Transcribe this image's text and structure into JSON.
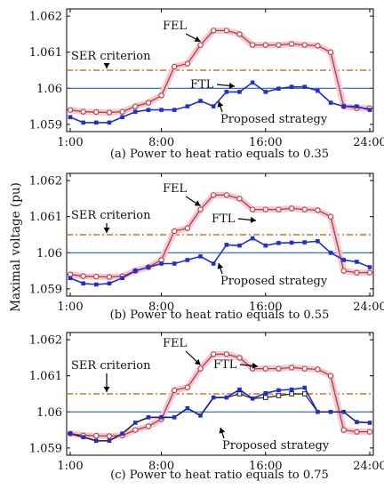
{
  "figure": {
    "ylabel": "Maximal voltage (pu)",
    "x_ticks": [
      "1:00",
      "8:00",
      "16:00",
      "24:00"
    ],
    "y_ticks": [
      "1.059",
      "1.06",
      "1.061",
      "1.062"
    ]
  },
  "chart_data": [
    {
      "type": "line",
      "caption": "(a) Power to heat ratio equals to 0.35",
      "xlim": [
        1,
        24
      ],
      "ylim": [
        1.0588,
        1.0622
      ],
      "x": [
        1,
        2,
        3,
        4,
        5,
        6,
        7,
        8,
        9,
        10,
        11,
        12,
        13,
        14,
        15,
        16,
        17,
        18,
        19,
        20,
        21,
        22,
        23,
        24
      ],
      "series": [
        {
          "name": "FEL",
          "values": [
            1.0594,
            1.05935,
            1.05934,
            1.05933,
            1.05935,
            1.0595,
            1.0596,
            1.0598,
            1.0606,
            1.06068,
            1.0612,
            1.0616,
            1.0616,
            1.0615,
            1.0612,
            1.0612,
            1.0612,
            1.06123,
            1.0612,
            1.06118,
            1.061,
            1.0595,
            1.05945,
            1.05945
          ]
        },
        {
          "name": "FTL",
          "values": [
            1.0592,
            1.05905,
            1.05905,
            1.05905,
            1.0592,
            1.05935,
            1.0594,
            1.0594,
            1.0594,
            1.0595,
            1.05965,
            1.0595,
            1.0599,
            1.0599,
            1.06016,
            1.0599,
            1.05999,
            1.06004,
            1.06004,
            1.05993,
            1.0596,
            1.0595,
            1.0595,
            1.0594
          ]
        },
        {
          "name": "Proposed strategy",
          "values": [
            1.0592,
            1.05905,
            1.05905,
            1.05905,
            1.0592,
            1.05935,
            1.0594,
            1.0594,
            1.0594,
            1.0595,
            1.05965,
            1.0595,
            1.0599,
            1.0599,
            1.06016,
            1.0599,
            1.05999,
            1.06004,
            1.06004,
            1.05993,
            1.0596,
            1.0595,
            1.0595,
            1.0594
          ]
        }
      ],
      "references": [
        {
          "name": "SER criterion",
          "value": 1.0605
        },
        {
          "value": 1.06
        }
      ],
      "labels": {
        "fel": "FEL",
        "ftl": "FTL",
        "ser": "SER criterion",
        "proposed": "Proposed strategy"
      }
    },
    {
      "type": "line",
      "caption": "(b) Power to heat ratio equals to 0.55",
      "xlim": [
        1,
        24
      ],
      "ylim": [
        1.0588,
        1.0622
      ],
      "x": [
        1,
        2,
        3,
        4,
        5,
        6,
        7,
        8,
        9,
        10,
        11,
        12,
        13,
        14,
        15,
        16,
        17,
        18,
        19,
        20,
        21,
        22,
        23,
        24
      ],
      "series": [
        {
          "name": "FEL",
          "values": [
            1.0594,
            1.05935,
            1.05934,
            1.05933,
            1.05935,
            1.0595,
            1.0596,
            1.0598,
            1.0606,
            1.06068,
            1.0612,
            1.0616,
            1.0616,
            1.0615,
            1.0612,
            1.0612,
            1.0612,
            1.06123,
            1.0612,
            1.06118,
            1.061,
            1.0595,
            1.05945,
            1.05945
          ]
        },
        {
          "name": "FTL",
          "values": [
            1.0593,
            1.05915,
            1.05912,
            1.05915,
            1.0593,
            1.0595,
            1.0596,
            1.0597,
            1.0597,
            1.0598,
            1.0599,
            1.0597,
            1.06022,
            1.0602,
            1.0604,
            1.0602,
            1.06027,
            1.06028,
            1.06029,
            1.06032,
            1.06,
            1.0598,
            1.05975,
            1.0596
          ]
        },
        {
          "name": "Proposed strategy",
          "values": [
            1.0593,
            1.05915,
            1.05912,
            1.05915,
            1.0593,
            1.0595,
            1.0596,
            1.0597,
            1.0597,
            1.0598,
            1.0599,
            1.0597,
            1.06022,
            1.0602,
            1.0604,
            1.0602,
            1.06027,
            1.06028,
            1.06029,
            1.06032,
            1.06,
            1.0598,
            1.05975,
            1.0596
          ]
        }
      ],
      "references": [
        {
          "name": "SER criterion",
          "value": 1.0605
        },
        {
          "value": 1.06
        }
      ],
      "labels": {
        "fel": "FEL",
        "ftl": "FTL",
        "ser": "SER criterion",
        "proposed": "Proposed strategy"
      }
    },
    {
      "type": "line",
      "caption": "(c) Power to heat ratio equals to 0.75",
      "xlim": [
        1,
        24
      ],
      "ylim": [
        1.0588,
        1.0622
      ],
      "x": [
        1,
        2,
        3,
        4,
        5,
        6,
        7,
        8,
        9,
        10,
        11,
        12,
        13,
        14,
        15,
        16,
        17,
        18,
        19,
        20,
        21,
        22,
        23,
        24
      ],
      "series": [
        {
          "name": "FEL",
          "values": [
            1.0594,
            1.05935,
            1.05934,
            1.05933,
            1.05935,
            1.0595,
            1.0596,
            1.0598,
            1.0606,
            1.06068,
            1.0612,
            1.0616,
            1.0616,
            1.0615,
            1.0612,
            1.0612,
            1.0612,
            1.06123,
            1.0612,
            1.06118,
            1.061,
            1.0595,
            1.05945,
            1.05945
          ]
        },
        {
          "name": "FTL",
          "values": [
            1.0594,
            1.0593,
            1.0592,
            1.0592,
            1.0594,
            1.0597,
            1.05985,
            1.05985,
            1.05985,
            1.0601,
            1.0599,
            1.0604,
            1.0604,
            1.06062,
            1.06037,
            1.06052,
            1.0606,
            1.06062,
            1.06067,
            1.06,
            1.06,
            1.06,
            1.05972,
            1.0597
          ]
        },
        {
          "name": "Proposed strategy",
          "values": [
            1.0594,
            1.0593,
            1.0592,
            1.0592,
            1.0594,
            1.0597,
            1.05985,
            1.05985,
            1.05985,
            1.0601,
            1.0599,
            1.0604,
            1.0604,
            1.0605,
            1.06037,
            1.0604,
            1.06045,
            1.0605,
            1.0605,
            1.06,
            1.06,
            1.06,
            1.05972,
            1.0597
          ]
        }
      ],
      "references": [
        {
          "name": "SER criterion",
          "value": 1.0605
        },
        {
          "value": 1.06
        }
      ],
      "labels": {
        "fel": "FEL",
        "ftl": "FTL",
        "ser": "SER criterion",
        "proposed": "Proposed strategy"
      }
    }
  ],
  "colors": {
    "fel": "#c0392b",
    "fel_glow": "#f0c8d8",
    "ftl": "#1f2fd6",
    "proposed": "#222222",
    "reference": "#1f5fbf",
    "ser": "#c8762a",
    "axis": "#000000"
  }
}
